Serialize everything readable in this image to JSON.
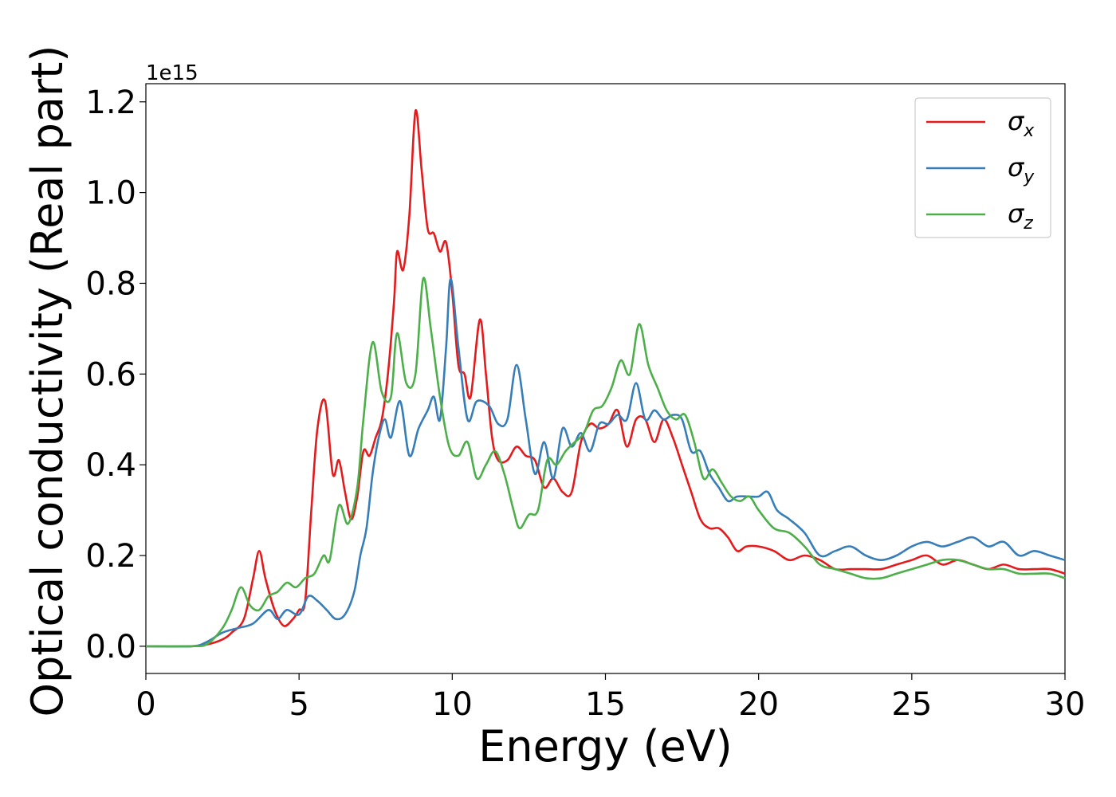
{
  "chart_data": {
    "type": "line",
    "xlabel": "Energy (eV)",
    "ylabel": "Optical conductivity (Real part)",
    "y_offset_label": "1e15",
    "xlim": [
      0,
      30
    ],
    "ylim": [
      -0.06,
      1.24
    ],
    "x_ticks": [
      0,
      5,
      10,
      15,
      20,
      25,
      30
    ],
    "x_tick_labels": [
      "0",
      "5",
      "10",
      "15",
      "20",
      "25",
      "30"
    ],
    "y_ticks": [
      0.0,
      0.2,
      0.4,
      0.6,
      0.8,
      1.0,
      1.2
    ],
    "y_tick_labels": [
      "0.0",
      "0.2",
      "0.4",
      "0.6",
      "0.8",
      "1.0",
      "1.2"
    ],
    "grid": false,
    "legend_position": "top-right",
    "series": [
      {
        "name": "σx",
        "legend_base": "σ",
        "legend_sub": "x",
        "color": "#e41a1c",
        "points": [
          [
            0,
            0.0
          ],
          [
            1.5,
            0.0
          ],
          [
            2.0,
            0.004
          ],
          [
            2.5,
            0.015
          ],
          [
            2.8,
            0.03
          ],
          [
            3.2,
            0.06
          ],
          [
            3.5,
            0.15
          ],
          [
            3.7,
            0.21
          ],
          [
            3.9,
            0.15
          ],
          [
            4.2,
            0.08
          ],
          [
            4.5,
            0.045
          ],
          [
            4.8,
            0.06
          ],
          [
            5.0,
            0.08
          ],
          [
            5.2,
            0.1
          ],
          [
            5.4,
            0.3
          ],
          [
            5.6,
            0.48
          ],
          [
            5.85,
            0.54
          ],
          [
            6.1,
            0.38
          ],
          [
            6.3,
            0.41
          ],
          [
            6.5,
            0.34
          ],
          [
            6.7,
            0.28
          ],
          [
            6.9,
            0.33
          ],
          [
            7.1,
            0.43
          ],
          [
            7.3,
            0.42
          ],
          [
            7.5,
            0.46
          ],
          [
            7.7,
            0.5
          ],
          [
            7.9,
            0.6
          ],
          [
            8.1,
            0.76
          ],
          [
            8.2,
            0.87
          ],
          [
            8.4,
            0.83
          ],
          [
            8.6,
            0.95
          ],
          [
            8.8,
            1.18
          ],
          [
            9.0,
            1.05
          ],
          [
            9.2,
            0.92
          ],
          [
            9.4,
            0.91
          ],
          [
            9.6,
            0.87
          ],
          [
            9.8,
            0.89
          ],
          [
            10.0,
            0.78
          ],
          [
            10.2,
            0.62
          ],
          [
            10.4,
            0.6
          ],
          [
            10.6,
            0.55
          ],
          [
            10.9,
            0.72
          ],
          [
            11.1,
            0.6
          ],
          [
            11.3,
            0.46
          ],
          [
            11.5,
            0.41
          ],
          [
            11.8,
            0.41
          ],
          [
            12.1,
            0.44
          ],
          [
            12.4,
            0.42
          ],
          [
            12.7,
            0.41
          ],
          [
            13.0,
            0.35
          ],
          [
            13.3,
            0.37
          ],
          [
            13.6,
            0.34
          ],
          [
            13.9,
            0.34
          ],
          [
            14.2,
            0.45
          ],
          [
            14.5,
            0.49
          ],
          [
            14.8,
            0.48
          ],
          [
            15.1,
            0.49
          ],
          [
            15.4,
            0.52
          ],
          [
            15.7,
            0.44
          ],
          [
            16.0,
            0.5
          ],
          [
            16.3,
            0.5
          ],
          [
            16.6,
            0.45
          ],
          [
            16.9,
            0.5
          ],
          [
            17.2,
            0.46
          ],
          [
            17.5,
            0.4
          ],
          [
            17.8,
            0.34
          ],
          [
            18.1,
            0.28
          ],
          [
            18.4,
            0.26
          ],
          [
            18.7,
            0.26
          ],
          [
            19.0,
            0.24
          ],
          [
            19.3,
            0.21
          ],
          [
            19.6,
            0.22
          ],
          [
            20.0,
            0.22
          ],
          [
            20.5,
            0.21
          ],
          [
            21.0,
            0.19
          ],
          [
            21.5,
            0.2
          ],
          [
            22.0,
            0.19
          ],
          [
            22.5,
            0.17
          ],
          [
            23.0,
            0.17
          ],
          [
            23.5,
            0.17
          ],
          [
            24.0,
            0.17
          ],
          [
            24.5,
            0.18
          ],
          [
            25.0,
            0.19
          ],
          [
            25.5,
            0.2
          ],
          [
            26.0,
            0.18
          ],
          [
            26.5,
            0.19
          ],
          [
            27.0,
            0.18
          ],
          [
            27.5,
            0.17
          ],
          [
            28.0,
            0.18
          ],
          [
            28.5,
            0.17
          ],
          [
            29.0,
            0.17
          ],
          [
            29.5,
            0.17
          ],
          [
            30.0,
            0.16
          ]
        ]
      },
      {
        "name": "σy",
        "legend_base": "σ",
        "legend_sub": "y",
        "color": "#377eb8",
        "points": [
          [
            0,
            0.0
          ],
          [
            1.5,
            0.0
          ],
          [
            2.0,
            0.01
          ],
          [
            2.5,
            0.03
          ],
          [
            3.0,
            0.04
          ],
          [
            3.5,
            0.05
          ],
          [
            4.0,
            0.08
          ],
          [
            4.3,
            0.06
          ],
          [
            4.6,
            0.08
          ],
          [
            5.0,
            0.07
          ],
          [
            5.3,
            0.11
          ],
          [
            5.6,
            0.1
          ],
          [
            5.9,
            0.08
          ],
          [
            6.2,
            0.06
          ],
          [
            6.5,
            0.07
          ],
          [
            6.8,
            0.12
          ],
          [
            7.0,
            0.2
          ],
          [
            7.2,
            0.26
          ],
          [
            7.4,
            0.38
          ],
          [
            7.6,
            0.46
          ],
          [
            7.8,
            0.5
          ],
          [
            8.0,
            0.46
          ],
          [
            8.3,
            0.54
          ],
          [
            8.6,
            0.42
          ],
          [
            8.9,
            0.48
          ],
          [
            9.2,
            0.52
          ],
          [
            9.4,
            0.55
          ],
          [
            9.6,
            0.5
          ],
          [
            9.8,
            0.66
          ],
          [
            9.95,
            0.81
          ],
          [
            10.2,
            0.66
          ],
          [
            10.5,
            0.5
          ],
          [
            10.8,
            0.54
          ],
          [
            11.2,
            0.53
          ],
          [
            11.5,
            0.49
          ],
          [
            11.8,
            0.5
          ],
          [
            12.1,
            0.62
          ],
          [
            12.4,
            0.5
          ],
          [
            12.7,
            0.38
          ],
          [
            13.0,
            0.45
          ],
          [
            13.3,
            0.37
          ],
          [
            13.6,
            0.48
          ],
          [
            13.9,
            0.44
          ],
          [
            14.2,
            0.47
          ],
          [
            14.5,
            0.43
          ],
          [
            14.8,
            0.49
          ],
          [
            15.1,
            0.49
          ],
          [
            15.4,
            0.51
          ],
          [
            15.7,
            0.5
          ],
          [
            16.0,
            0.58
          ],
          [
            16.3,
            0.5
          ],
          [
            16.6,
            0.52
          ],
          [
            16.9,
            0.5
          ],
          [
            17.2,
            0.51
          ],
          [
            17.5,
            0.5
          ],
          [
            17.8,
            0.43
          ],
          [
            18.1,
            0.43
          ],
          [
            18.4,
            0.38
          ],
          [
            18.7,
            0.35
          ],
          [
            19.0,
            0.32
          ],
          [
            19.3,
            0.33
          ],
          [
            19.7,
            0.33
          ],
          [
            20.0,
            0.33
          ],
          [
            20.3,
            0.34
          ],
          [
            20.6,
            0.3
          ],
          [
            21.0,
            0.28
          ],
          [
            21.5,
            0.25
          ],
          [
            22.0,
            0.2
          ],
          [
            22.5,
            0.21
          ],
          [
            23.0,
            0.22
          ],
          [
            23.5,
            0.2
          ],
          [
            24.0,
            0.19
          ],
          [
            24.5,
            0.2
          ],
          [
            25.0,
            0.22
          ],
          [
            25.5,
            0.23
          ],
          [
            26.0,
            0.22
          ],
          [
            26.5,
            0.23
          ],
          [
            27.0,
            0.24
          ],
          [
            27.5,
            0.22
          ],
          [
            28.0,
            0.23
          ],
          [
            28.5,
            0.2
          ],
          [
            29.0,
            0.21
          ],
          [
            29.5,
            0.2
          ],
          [
            30.0,
            0.19
          ]
        ]
      },
      {
        "name": "σz",
        "legend_base": "σ",
        "legend_sub": "z",
        "color": "#4daf4a",
        "points": [
          [
            0,
            0.0
          ],
          [
            1.5,
            0.0
          ],
          [
            2.0,
            0.005
          ],
          [
            2.5,
            0.04
          ],
          [
            2.8,
            0.08
          ],
          [
            3.1,
            0.13
          ],
          [
            3.4,
            0.09
          ],
          [
            3.7,
            0.08
          ],
          [
            4.0,
            0.11
          ],
          [
            4.3,
            0.12
          ],
          [
            4.6,
            0.14
          ],
          [
            4.9,
            0.13
          ],
          [
            5.2,
            0.15
          ],
          [
            5.5,
            0.16
          ],
          [
            5.8,
            0.2
          ],
          [
            6.0,
            0.19
          ],
          [
            6.3,
            0.31
          ],
          [
            6.6,
            0.27
          ],
          [
            6.9,
            0.35
          ],
          [
            7.1,
            0.5
          ],
          [
            7.4,
            0.67
          ],
          [
            7.7,
            0.56
          ],
          [
            8.0,
            0.55
          ],
          [
            8.2,
            0.69
          ],
          [
            8.5,
            0.58
          ],
          [
            8.8,
            0.6
          ],
          [
            9.05,
            0.81
          ],
          [
            9.3,
            0.7
          ],
          [
            9.6,
            0.55
          ],
          [
            9.9,
            0.44
          ],
          [
            10.2,
            0.42
          ],
          [
            10.5,
            0.45
          ],
          [
            10.8,
            0.37
          ],
          [
            11.1,
            0.4
          ],
          [
            11.4,
            0.43
          ],
          [
            11.7,
            0.38
          ],
          [
            12.0,
            0.3
          ],
          [
            12.2,
            0.26
          ],
          [
            12.5,
            0.29
          ],
          [
            12.8,
            0.3
          ],
          [
            13.1,
            0.41
          ],
          [
            13.4,
            0.4
          ],
          [
            13.7,
            0.43
          ],
          [
            14.0,
            0.45
          ],
          [
            14.3,
            0.47
          ],
          [
            14.6,
            0.52
          ],
          [
            14.9,
            0.53
          ],
          [
            15.2,
            0.57
          ],
          [
            15.5,
            0.63
          ],
          [
            15.8,
            0.6
          ],
          [
            16.1,
            0.71
          ],
          [
            16.4,
            0.62
          ],
          [
            16.7,
            0.57
          ],
          [
            17.0,
            0.52
          ],
          [
            17.3,
            0.5
          ],
          [
            17.6,
            0.51
          ],
          [
            17.9,
            0.45
          ],
          [
            18.2,
            0.37
          ],
          [
            18.5,
            0.39
          ],
          [
            18.8,
            0.36
          ],
          [
            19.1,
            0.33
          ],
          [
            19.4,
            0.32
          ],
          [
            19.7,
            0.33
          ],
          [
            20.0,
            0.3
          ],
          [
            20.5,
            0.26
          ],
          [
            21.0,
            0.25
          ],
          [
            21.5,
            0.22
          ],
          [
            22.0,
            0.18
          ],
          [
            22.5,
            0.17
          ],
          [
            23.0,
            0.16
          ],
          [
            23.5,
            0.15
          ],
          [
            24.0,
            0.15
          ],
          [
            24.5,
            0.16
          ],
          [
            25.0,
            0.17
          ],
          [
            25.5,
            0.18
          ],
          [
            26.0,
            0.19
          ],
          [
            26.5,
            0.19
          ],
          [
            27.0,
            0.18
          ],
          [
            27.5,
            0.17
          ],
          [
            28.0,
            0.17
          ],
          [
            28.5,
            0.16
          ],
          [
            29.0,
            0.16
          ],
          [
            29.5,
            0.16
          ],
          [
            30.0,
            0.15
          ]
        ]
      }
    ]
  }
}
